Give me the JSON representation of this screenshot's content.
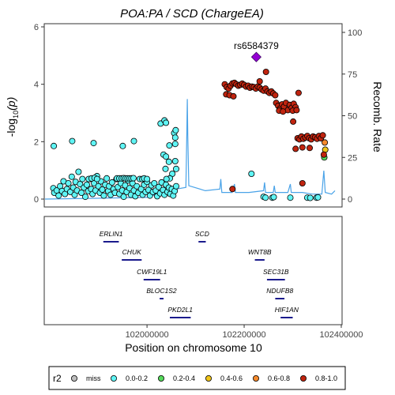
{
  "chart_data": {
    "type": "scatter",
    "title": "POA:PA / SCD (ChargeEA)",
    "ylabel": "-log10(p)",
    "ylabel_main": "-log",
    "ylabel_sub": "10",
    "ylabel_tail": "(p)",
    "y2label": "Recomb. Rate",
    "xlabel": "Position on chromosome 10",
    "xlim": [
      101790000,
      102400000
    ],
    "ylim": [
      0,
      6
    ],
    "y2lim": [
      0,
      100
    ],
    "y_ticks": [
      0,
      2,
      4,
      6
    ],
    "y2_ticks": [
      0,
      25,
      50,
      75,
      100
    ],
    "x_ticks": [
      102000000,
      102200000,
      102400000
    ],
    "x_tick_labels": [
      "102000000",
      "102200000",
      "102400000"
    ],
    "grid": false,
    "lead_snp": {
      "label": "rs6584379",
      "x": 102225000,
      "y": 4.95,
      "color": "#9400d3"
    },
    "legend": {
      "title": "r2",
      "placement": "bottom",
      "items": [
        {
          "label": "miss",
          "color": "#bdbdbd"
        },
        {
          "label": "0.0-0.2",
          "color": "#5ff5f5"
        },
        {
          "label": "0.2-0.4",
          "color": "#55d95b"
        },
        {
          "label": "0.4-0.6",
          "color": "#f0c419"
        },
        {
          "label": "0.6-0.8",
          "color": "#f5892c"
        },
        {
          "label": "0.8-1.0",
          "color": "#c0240f"
        }
      ]
    },
    "series": [
      {
        "name": "0.0-0.2",
        "color": "#5ff5f5",
        "points": [
          [
            101808000,
            1.85
          ],
          [
            101846000,
            2.02
          ],
          [
            101890000,
            1.95
          ],
          [
            101950000,
            1.85
          ],
          [
            101973000,
            2.02
          ],
          [
            102028000,
            2.63
          ],
          [
            102036000,
            2.74
          ],
          [
            102039000,
            2.66
          ],
          [
            102056000,
            2.3
          ],
          [
            102059000,
            2.4
          ],
          [
            102058000,
            2.14
          ],
          [
            102058000,
            1.92
          ],
          [
            102046000,
            1.87
          ],
          [
            102034000,
            1.55
          ],
          [
            102039000,
            1.48
          ],
          [
            102045000,
            1.3
          ],
          [
            102038000,
            1.05
          ],
          [
            102052000,
            0.88
          ],
          [
            102058000,
            1.32
          ],
          [
            102060000,
            1.05
          ],
          [
            102047000,
            0.72
          ],
          [
            102215000,
            0.88
          ],
          [
            101807000,
            0.38
          ],
          [
            101809000,
            0.22
          ],
          [
            101814000,
            0.3
          ],
          [
            101818000,
            0.12
          ],
          [
            101821000,
            0.45
          ],
          [
            101825000,
            0.28
          ],
          [
            101828000,
            0.62
          ],
          [
            101831000,
            0.18
          ],
          [
            101835000,
            0.35
          ],
          [
            101838000,
            0.55
          ],
          [
            101842000,
            0.25
          ],
          [
            101845000,
            0.78
          ],
          [
            101848000,
            0.4
          ],
          [
            101851000,
            0.15
          ],
          [
            101853000,
            0.6
          ],
          [
            101856000,
            0.3
          ],
          [
            101859000,
            0.95
          ],
          [
            101862000,
            0.52
          ],
          [
            101865000,
            0.22
          ],
          [
            101867000,
            0.7
          ],
          [
            101870000,
            0.4
          ],
          [
            101873000,
            0.08
          ],
          [
            101876000,
            0.5
          ],
          [
            101879000,
            0.28
          ],
          [
            101882000,
            0.7
          ],
          [
            101885000,
            0.35
          ],
          [
            101888000,
            0.18
          ],
          [
            101891000,
            0.55
          ],
          [
            101894000,
            0.3
          ],
          [
            101897000,
            0.8
          ],
          [
            101900000,
            0.45
          ],
          [
            101903000,
            0.22
          ],
          [
            101905000,
            0.62
          ],
          [
            101908000,
            0.33
          ],
          [
            101911000,
            0.12
          ],
          [
            101914000,
            0.5
          ],
          [
            101917000,
            0.72
          ],
          [
            101920000,
            0.28
          ],
          [
            101922000,
            0.45
          ],
          [
            101925000,
            0.15
          ],
          [
            101928000,
            0.58
          ],
          [
            101931000,
            0.35
          ],
          [
            101934000,
            0.22
          ],
          [
            101937000,
            0.7
          ],
          [
            101940000,
            0.42
          ],
          [
            101943000,
            0.18
          ],
          [
            101946000,
            0.55
          ],
          [
            101949000,
            0.3
          ],
          [
            101952000,
            0.08
          ],
          [
            101955000,
            0.48
          ],
          [
            101958000,
            0.25
          ],
          [
            101961000,
            0.65
          ],
          [
            101964000,
            0.38
          ],
          [
            101967000,
            0.15
          ],
          [
            101970000,
            0.55
          ],
          [
            101973000,
            0.3
          ],
          [
            101976000,
            0.1
          ],
          [
            101979000,
            0.45
          ],
          [
            101982000,
            0.22
          ],
          [
            101985000,
            0.7
          ],
          [
            101988000,
            0.35
          ],
          [
            101991000,
            0.15
          ],
          [
            101994000,
            0.5
          ],
          [
            101997000,
            0.25
          ],
          [
            102000000,
            0.6
          ],
          [
            102003000,
            0.32
          ],
          [
            102006000,
            0.12
          ],
          [
            102009000,
            0.48
          ],
          [
            102012000,
            0.25
          ],
          [
            102015000,
            0.55
          ],
          [
            102018000,
            0.3
          ],
          [
            102021000,
            0.1
          ],
          [
            102024000,
            0.42
          ],
          [
            102027000,
            0.2
          ],
          [
            102030000,
            0.58
          ],
          [
            102033000,
            0.32
          ],
          [
            102036000,
            0.15
          ],
          [
            102039000,
            0.5
          ],
          [
            102042000,
            0.25
          ],
          [
            102045000,
            0.4
          ],
          [
            102048000,
            0.18
          ],
          [
            102051000,
            0.35
          ],
          [
            102054000,
            0.12
          ],
          [
            102057000,
            0.28
          ],
          [
            102060000,
            0.45
          ],
          [
            101880000,
            0.7
          ],
          [
            101886000,
            0.72
          ],
          [
            101892000,
            0.74
          ],
          [
            101897000,
            0.7
          ],
          [
            101938000,
            0.72
          ],
          [
            101943000,
            0.72
          ],
          [
            101948000,
            0.72
          ],
          [
            101952000,
            0.73
          ],
          [
            101956000,
            0.72
          ],
          [
            101960000,
            0.72
          ],
          [
            101964000,
            0.72
          ],
          [
            101968000,
            0.72
          ],
          [
            101972000,
            0.73
          ],
          [
            101990000,
            0.7
          ],
          [
            101994000,
            0.72
          ],
          [
            102000000,
            0.7
          ],
          [
            102040000,
            0.7
          ],
          [
            102240000,
            0.08
          ],
          [
            102244000,
            0.05
          ],
          [
            102258000,
            0.05
          ],
          [
            102261000,
            0.07
          ],
          [
            102295000,
            0.05
          ],
          [
            102330000,
            0.05
          ],
          [
            102336000,
            0.04
          ],
          [
            102349000,
            0.05
          ],
          [
            102352000,
            0.06
          ]
        ]
      },
      {
        "name": "0.2-0.4",
        "color": "#55d95b",
        "points": [
          [
            102365000,
            1.45
          ]
        ]
      },
      {
        "name": "0.4-0.6",
        "color": "#f0c419",
        "points": [
          [
            102367000,
            1.72
          ]
        ]
      },
      {
        "name": "0.6-0.8",
        "color": "#f5892c",
        "points": [
          [
            102366000,
            1.97
          ]
        ]
      },
      {
        "name": "0.8-1.0",
        "color": "#c0240f",
        "points": [
          [
            102160000,
            4.0
          ],
          [
            102164000,
            3.9
          ],
          [
            102168000,
            3.85
          ],
          [
            102172000,
            3.95
          ],
          [
            102176000,
            4.03
          ],
          [
            102180000,
            4.05
          ],
          [
            102184000,
            4.0
          ],
          [
            102188000,
            3.95
          ],
          [
            102192000,
            3.98
          ],
          [
            102196000,
            4.02
          ],
          [
            102200000,
            3.98
          ],
          [
            102204000,
            3.92
          ],
          [
            102208000,
            3.95
          ],
          [
            102212000,
            3.88
          ],
          [
            102216000,
            3.92
          ],
          [
            102220000,
            3.9
          ],
          [
            102224000,
            3.85
          ],
          [
            102228000,
            3.92
          ],
          [
            102232000,
            3.88
          ],
          [
            102236000,
            3.82
          ],
          [
            102240000,
            3.78
          ],
          [
            102244000,
            3.85
          ],
          [
            102248000,
            3.75
          ],
          [
            102252000,
            3.7
          ],
          [
            102256000,
            3.75
          ],
          [
            102260000,
            3.68
          ],
          [
            102264000,
            3.62
          ],
          [
            102163000,
            3.65
          ],
          [
            102170000,
            3.62
          ],
          [
            102178000,
            3.58
          ],
          [
            102245000,
            4.43
          ],
          [
            102232000,
            4.1
          ],
          [
            102266000,
            3.35
          ],
          [
            102270000,
            3.25
          ],
          [
            102274000,
            3.15
          ],
          [
            102278000,
            3.3
          ],
          [
            102282000,
            3.22
          ],
          [
            102286000,
            3.35
          ],
          [
            102290000,
            3.1
          ],
          [
            102294000,
            3.28
          ],
          [
            102298000,
            3.18
          ],
          [
            102302000,
            3.32
          ],
          [
            102306000,
            3.2
          ],
          [
            102272000,
            3.08
          ],
          [
            102280000,
            3.05
          ],
          [
            102300000,
            3.08
          ],
          [
            102308000,
            3.1
          ],
          [
            102312000,
            3.7
          ],
          [
            102301000,
            2.7
          ],
          [
            102310000,
            2.12
          ],
          [
            102314000,
            2.08
          ],
          [
            102318000,
            2.18
          ],
          [
            102322000,
            2.1
          ],
          [
            102326000,
            2.15
          ],
          [
            102330000,
            2.2
          ],
          [
            102334000,
            2.12
          ],
          [
            102338000,
            2.08
          ],
          [
            102342000,
            2.18
          ],
          [
            102346000,
            2.15
          ],
          [
            102350000,
            2.1
          ],
          [
            102354000,
            2.2
          ],
          [
            102358000,
            2.12
          ],
          [
            102362000,
            2.22
          ],
          [
            102306000,
            1.75
          ],
          [
            102335000,
            1.78
          ],
          [
            102320000,
            1.8
          ],
          [
            102364000,
            1.55
          ],
          [
            102176000,
            0.35
          ],
          [
            102320000,
            0.55
          ]
        ]
      }
    ],
    "recomb_rate": [
      [
        101790000,
        0
      ],
      [
        102000000,
        1
      ],
      [
        102040000,
        5
      ],
      [
        102080000,
        7
      ],
      [
        102082000,
        40
      ],
      [
        102083000,
        60
      ],
      [
        102084000,
        38
      ],
      [
        102086000,
        8
      ],
      [
        102120000,
        5
      ],
      [
        102150000,
        6
      ],
      [
        102152000,
        12
      ],
      [
        102154000,
        4
      ],
      [
        102175000,
        4
      ],
      [
        102180000,
        9
      ],
      [
        102182000,
        4
      ],
      [
        102210000,
        4
      ],
      [
        102240000,
        5
      ],
      [
        102242000,
        10
      ],
      [
        102244000,
        4
      ],
      [
        102260000,
        4
      ],
      [
        102262000,
        8
      ],
      [
        102264000,
        4
      ],
      [
        102290000,
        4
      ],
      [
        102295000,
        9
      ],
      [
        102297000,
        4
      ],
      [
        102320000,
        4
      ],
      [
        102340000,
        3
      ],
      [
        102360000,
        3
      ],
      [
        102364000,
        17
      ],
      [
        102367000,
        4
      ],
      [
        102380000,
        3
      ],
      [
        102387000,
        5
      ]
    ],
    "genes": [
      {
        "label": "ERLIN1",
        "start": 101910000,
        "end": 101942000,
        "row": 0
      },
      {
        "label": "SCD",
        "start": 102106000,
        "end": 102121000,
        "row": 0
      },
      {
        "label": "WNT8B",
        "start": 102222000,
        "end": 102242000,
        "row": 1
      },
      {
        "label": "CHUK",
        "start": 101948000,
        "end": 101989000,
        "row": 1
      },
      {
        "label": "CWF19L1",
        "start": 101993000,
        "end": 102027000,
        "row": 2
      },
      {
        "label": "SEC31B",
        "start": 102247000,
        "end": 102284000,
        "row": 2
      },
      {
        "label": "BLOC1S2",
        "start": 102026000,
        "end": 102034000,
        "row": 3
      },
      {
        "label": "NDUFB8",
        "start": 102264000,
        "end": 102283000,
        "row": 3
      },
      {
        "label": "PKD2L1",
        "start": 102047000,
        "end": 102090000,
        "row": 4
      },
      {
        "label": "HIF1AN",
        "start": 102275000,
        "end": 102300000,
        "row": 4
      }
    ]
  }
}
